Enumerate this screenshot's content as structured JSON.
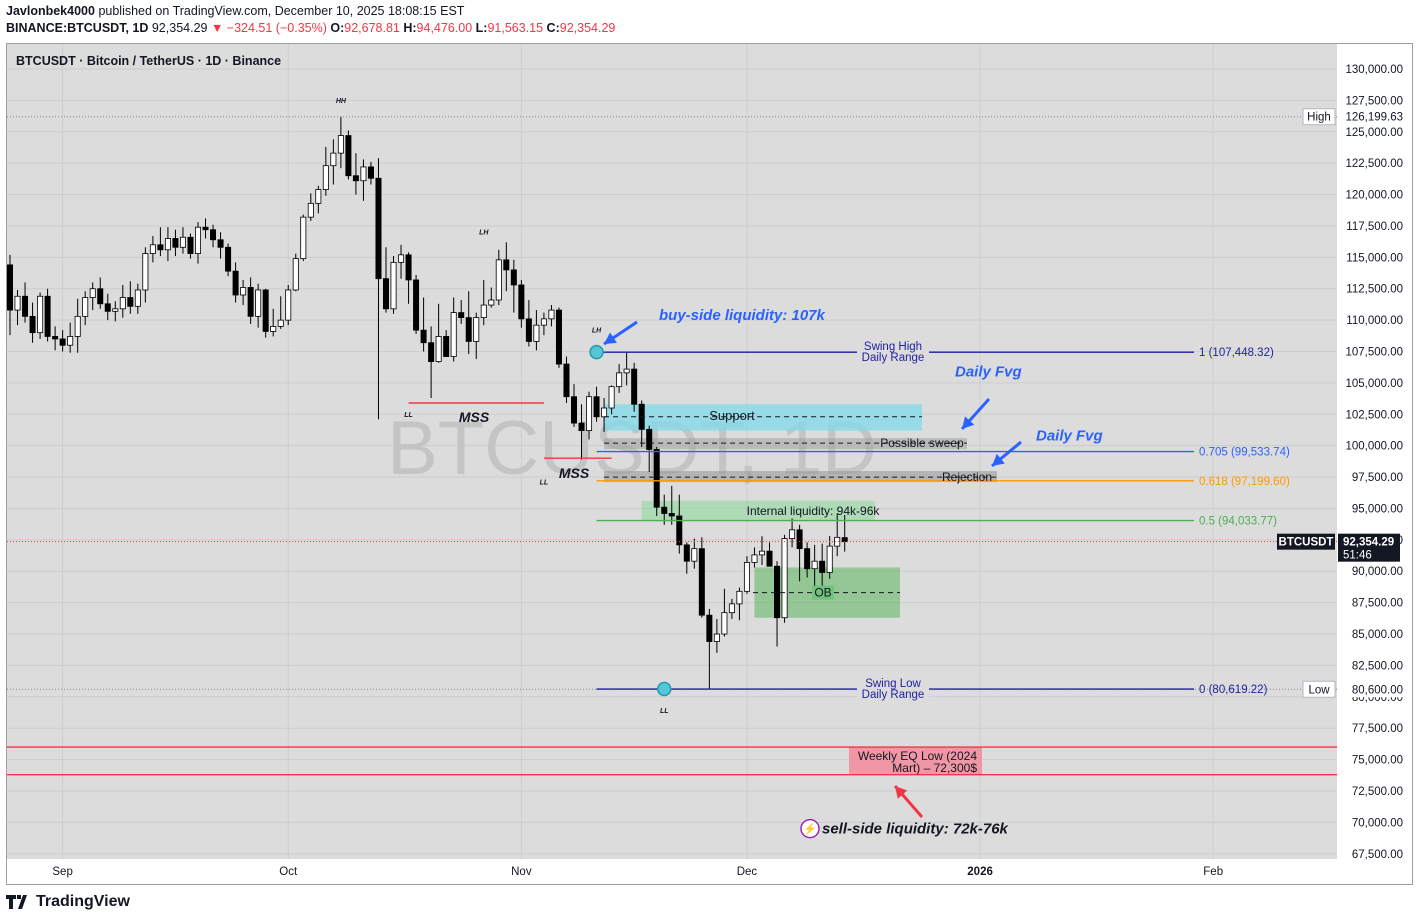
{
  "header": {
    "publisher": "Javlonbek4000",
    "published_text": "published on TradingView.com, December 10, 2025 18:08:15 EST",
    "symbol_line": "BINANCE:BTCUSDT, 1D",
    "last": "92,354.29",
    "change": "▼ −324.51 (−0.35%)",
    "o_label": "O:",
    "o": "92,678.81",
    "h_label": "H:",
    "h": "94,476.00",
    "l_label": "L:",
    "l": "91,563.15",
    "c_label": "C:",
    "c": "92,354.29"
  },
  "legend": "BTCUSDT · Bitcoin / TetherUS · 1D · Binance",
  "watermark": "BTCUSDT, 1D",
  "logo_text": "TradingView",
  "colors": {
    "up": "#ffffff",
    "down": "#000000",
    "bg": "#dcdcdc",
    "fib": "#1f1fa0",
    "accent_blue": "#2962ff",
    "red": "#f23645",
    "orange": "#ff9800",
    "green": "#4caf50"
  },
  "chart_data": {
    "type": "candlestick",
    "title": "BTCUSDT · Bitcoin / TetherUS · 1D · Binance",
    "interval": "1D",
    "ylim": [
      67500,
      131250
    ],
    "y_ticks": [
      "130,000.00",
      "127,500.00",
      "125,000.00",
      "122,500.00",
      "120,000.00",
      "117,500.00",
      "115,000.00",
      "112,500.00",
      "110,000.00",
      "107,500.00",
      "105,000.00",
      "102,500.00",
      "100,000.00",
      "97,500.00",
      "95,000.00",
      "92,500.00",
      "90,000.00",
      "87,500.00",
      "85,000.00",
      "82,500.00",
      "80,000.00",
      "77,500.00",
      "75,000.00",
      "72,500.00",
      "70,000.00",
      "67,500.00"
    ],
    "x_ticks": [
      "Sep",
      "Oct",
      "Nov",
      "Dec",
      "2026",
      "Feb"
    ],
    "price_labels": [
      {
        "label": "High",
        "value": "126,199.63"
      },
      {
        "label": "BTCUSDT",
        "value": "92,354.29",
        "countdown": "51:46"
      },
      {
        "label": "Low",
        "value": "80,600.00"
      }
    ],
    "fib_levels": [
      {
        "ratio": "1",
        "text": "1 (107,448.32)",
        "price": 107448.32
      },
      {
        "ratio": "0.705",
        "text": "0.705 (99,533.74)",
        "price": 99533.74
      },
      {
        "ratio": "0.618",
        "text": "0.618 (97,199.60)",
        "price": 97199.6
      },
      {
        "ratio": "0.5",
        "text": "0.5 (94,033.77)",
        "price": 94033.77
      },
      {
        "ratio": "0",
        "text": "0 (80,619.22)",
        "price": 80619.22
      }
    ],
    "zones": [
      {
        "label": "Support",
        "top": 103300,
        "bottom": 101200
      },
      {
        "label": "Possible sweep",
        "price": 100200
      },
      {
        "label": "Rejection",
        "price": 97500
      },
      {
        "label": "Internal liquidity: 94k-96k",
        "top": 95600,
        "bottom": 94000
      },
      {
        "label": "OB",
        "top": 90300,
        "bottom": 86300
      },
      {
        "label": "Weekly EQ Low (2024 Mart) – 72,300$",
        "top": 76000,
        "bottom": 73800
      }
    ],
    "annotations": [
      "buy-side liquidity: 107k",
      "Daily Fvg",
      "Daily Fvg",
      "sell-side liquidity: 72k-76k",
      "MSS",
      "MSS",
      "Swing High Daily Range",
      "Swing Low Daily Range",
      "HH",
      "LH",
      "LH",
      "LL",
      "LL",
      "LL"
    ],
    "candles": [
      [
        114400,
        115200,
        108800,
        110800
      ],
      [
        110800,
        112400,
        109600,
        111900
      ],
      [
        111900,
        113000,
        109800,
        110300
      ],
      [
        110300,
        111400,
        108200,
        109000
      ],
      [
        109000,
        112200,
        108500,
        111900
      ],
      [
        111900,
        112500,
        108300,
        108700
      ],
      [
        108700,
        109500,
        107600,
        108500
      ],
      [
        108500,
        109200,
        107500,
        108000
      ],
      [
        108000,
        109800,
        107400,
        108700
      ],
      [
        108700,
        111700,
        107400,
        110300
      ],
      [
        110300,
        112300,
        109600,
        111800
      ],
      [
        111800,
        113000,
        110800,
        112500
      ],
      [
        112500,
        113400,
        110900,
        111300
      ],
      [
        111300,
        112100,
        110000,
        110700
      ],
      [
        110700,
        111500,
        109900,
        110900
      ],
      [
        110900,
        112800,
        110200,
        111800
      ],
      [
        111800,
        113100,
        110500,
        111100
      ],
      [
        111100,
        112900,
        110500,
        112400
      ],
      [
        112400,
        115800,
        111400,
        115300
      ],
      [
        115300,
        116700,
        114600,
        116000
      ],
      [
        116000,
        117400,
        115100,
        115600
      ],
      [
        115600,
        117400,
        114700,
        116500
      ],
      [
        116500,
        117200,
        115100,
        115800
      ],
      [
        115800,
        117400,
        115300,
        116600
      ],
      [
        116600,
        116900,
        114900,
        115300
      ],
      [
        115300,
        117800,
        114500,
        117400
      ],
      [
        117400,
        118100,
        116500,
        117200
      ],
      [
        117200,
        117600,
        115800,
        116400
      ],
      [
        116400,
        117000,
        114900,
        115800
      ],
      [
        115800,
        116100,
        113500,
        113900
      ],
      [
        113900,
        114600,
        111400,
        112000
      ],
      [
        112000,
        113200,
        111200,
        112600
      ],
      [
        112600,
        113400,
        109700,
        110300
      ],
      [
        110300,
        112900,
        109400,
        112400
      ],
      [
        112400,
        112500,
        108600,
        109100
      ],
      [
        109100,
        110900,
        108700,
        109500
      ],
      [
        109500,
        111900,
        109300,
        110000
      ],
      [
        110000,
        112800,
        109600,
        112400
      ],
      [
        112400,
        115300,
        112300,
        114900
      ],
      [
        114900,
        118400,
        114700,
        118200
      ],
      [
        118200,
        120100,
        117900,
        119300
      ],
      [
        119300,
        120700,
        118500,
        120400
      ],
      [
        120400,
        123800,
        119900,
        122300
      ],
      [
        122300,
        124400,
        120800,
        123300
      ],
      [
        123300,
        126200,
        122100,
        124700
      ],
      [
        124700,
        125100,
        121200,
        121500
      ],
      [
        121500,
        123300,
        120000,
        121100
      ],
      [
        121100,
        122800,
        119500,
        122200
      ],
      [
        122200,
        122600,
        120800,
        121300
      ],
      [
        121300,
        122900,
        102100,
        113300
      ],
      [
        113300,
        115800,
        110600,
        110900
      ],
      [
        110900,
        115100,
        110500,
        114600
      ],
      [
        114600,
        116000,
        113300,
        115200
      ],
      [
        115200,
        115400,
        111300,
        113200
      ],
      [
        113200,
        113600,
        108900,
        109200
      ],
      [
        109200,
        111800,
        107500,
        108200
      ],
      [
        108200,
        109500,
        103800,
        106700
      ],
      [
        106700,
        111300,
        106600,
        108700
      ],
      [
        108700,
        109200,
        107400,
        107100
      ],
      [
        107100,
        111800,
        106700,
        110600
      ],
      [
        110600,
        111600,
        109700,
        110200
      ],
      [
        110200,
        112300,
        107300,
        108300
      ],
      [
        108300,
        110600,
        106900,
        110200
      ],
      [
        110200,
        113200,
        109600,
        111200
      ],
      [
        111200,
        112600,
        111000,
        111600
      ],
      [
        111600,
        115600,
        111200,
        114800
      ],
      [
        114800,
        116200,
        112300,
        114000
      ],
      [
        114000,
        114800,
        110600,
        112800
      ],
      [
        112800,
        113200,
        109400,
        110100
      ],
      [
        110100,
        111600,
        107900,
        108300
      ],
      [
        108300,
        110800,
        107600,
        109600
      ],
      [
        109600,
        110600,
        108800,
        110100
      ],
      [
        110100,
        111200,
        109500,
        110800
      ],
      [
        110800,
        111000,
        106200,
        106500
      ],
      [
        106500,
        107100,
        103400,
        103900
      ],
      [
        103900,
        104900,
        101500,
        101800
      ],
      [
        101800,
        103300,
        98900,
        101200
      ],
      [
        101200,
        104300,
        100500,
        103900
      ],
      [
        103900,
        104700,
        101900,
        102300
      ],
      [
        102300,
        103800,
        101100,
        103000
      ],
      [
        103000,
        104800,
        102500,
        104700
      ],
      [
        104700,
        106500,
        104200,
        105800
      ],
      [
        105800,
        107400,
        104800,
        106100
      ],
      [
        106100,
        106600,
        102700,
        103300
      ],
      [
        103300,
        103600,
        99900,
        101300
      ],
      [
        101300,
        101600,
        97900,
        99700
      ],
      [
        99700,
        99900,
        94400,
        95100
      ],
      [
        95100,
        96100,
        93700,
        94600
      ],
      [
        94600,
        96800,
        93700,
        94400
      ],
      [
        94400,
        96100,
        91400,
        92100
      ],
      [
        92100,
        92300,
        89800,
        90800
      ],
      [
        90800,
        92600,
        90200,
        91800
      ],
      [
        91800,
        92700,
        86300,
        86500
      ],
      [
        86500,
        87000,
        80600,
        84400
      ],
      [
        84400,
        86200,
        83500,
        85000
      ],
      [
        85000,
        88600,
        84800,
        86700
      ],
      [
        86700,
        87800,
        86200,
        87400
      ],
      [
        87400,
        88700,
        86100,
        88400
      ],
      [
        88400,
        91200,
        88200,
        90700
      ],
      [
        90700,
        91900,
        90300,
        91300
      ],
      [
        91300,
        92800,
        90500,
        91600
      ],
      [
        91600,
        92300,
        90800,
        90400
      ],
      [
        90400,
        90800,
        84000,
        86300
      ],
      [
        86300,
        92900,
        85900,
        92600
      ],
      [
        92600,
        94200,
        91900,
        93300
      ],
      [
        93300,
        93700,
        89200,
        91800
      ],
      [
        91800,
        92300,
        89500,
        90200
      ],
      [
        90200,
        92100,
        88400,
        90800
      ],
      [
        90800,
        92200,
        88800,
        89900
      ],
      [
        89900,
        92800,
        89400,
        92000
      ],
      [
        92000,
        94600,
        91200,
        92700
      ],
      [
        92678,
        94476,
        91563,
        92354
      ]
    ]
  }
}
